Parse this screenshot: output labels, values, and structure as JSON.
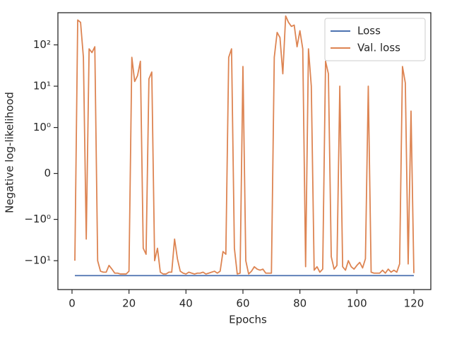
{
  "chart_data": {
    "type": "line",
    "x_label": "Epochs",
    "y_label": "Negative log-likelihood",
    "x": [
      1,
      2,
      3,
      4,
      5,
      6,
      7,
      8,
      9,
      10,
      11,
      12,
      13,
      14,
      15,
      16,
      17,
      18,
      19,
      20,
      21,
      22,
      23,
      24,
      25,
      26,
      27,
      28,
      29,
      30,
      31,
      32,
      33,
      34,
      35,
      36,
      37,
      38,
      39,
      40,
      41,
      42,
      43,
      44,
      45,
      46,
      47,
      48,
      49,
      50,
      51,
      52,
      53,
      54,
      55,
      56,
      57,
      58,
      59,
      60,
      61,
      62,
      63,
      64,
      65,
      66,
      67,
      68,
      69,
      70,
      71,
      72,
      73,
      74,
      75,
      76,
      77,
      78,
      79,
      80,
      81,
      82,
      83,
      84,
      85,
      86,
      87,
      88,
      89,
      90,
      91,
      92,
      93,
      94,
      95,
      96,
      97,
      98,
      99,
      100,
      101,
      102,
      103,
      104,
      105,
      106,
      107,
      108,
      109,
      110,
      111,
      112,
      113,
      114,
      115,
      116,
      117,
      118,
      119,
      120
    ],
    "series": [
      {
        "name": "Loss",
        "color": "#4c72b0",
        "values": [
          -23,
          -23,
          -23,
          -23,
          -23,
          -23,
          -23,
          -23,
          -23,
          -23,
          -23,
          -23,
          -23,
          -23,
          -23,
          -23,
          -23,
          -23,
          -23,
          -23,
          -23,
          -23,
          -23,
          -23,
          -23,
          -23,
          -23,
          -23,
          -23,
          -23,
          -23,
          -23,
          -23,
          -23,
          -23,
          -23,
          -23,
          -23,
          -23,
          -23,
          -23,
          -23,
          -23,
          -23,
          -23,
          -23,
          -23,
          -23,
          -23,
          -23,
          -23,
          -23,
          -23,
          -23,
          -23,
          -23,
          -23,
          -23,
          -23,
          -23,
          -23,
          -23,
          -23,
          -23,
          -23,
          -23,
          -23,
          -23,
          -23,
          -23,
          -23,
          -23,
          -23,
          -23,
          -23,
          -23,
          -23,
          -23,
          -23,
          -23,
          -23,
          -23,
          -23,
          -23,
          -23,
          -23,
          -23,
          -23,
          -23,
          -23,
          -23,
          -23,
          -23,
          -23,
          -23,
          -23,
          -23,
          -23,
          -23,
          -23,
          -23,
          -23,
          -23,
          -23,
          -23,
          -23,
          -23,
          -23,
          -23,
          -23,
          -23,
          -23,
          -23,
          -23,
          -23,
          -23,
          -23,
          -23,
          -23,
          -23
        ]
      },
      {
        "name": "Val. loss",
        "color": "#dd8452",
        "values": [
          -10,
          400,
          350,
          50,
          -3,
          80,
          65,
          90,
          -10,
          -18,
          -19,
          -19,
          -13,
          -16,
          -20,
          -20,
          -21,
          -21,
          -21,
          -18,
          50,
          13,
          18,
          40,
          -5,
          -7,
          15,
          22,
          -10,
          -5,
          -19,
          -21,
          -21,
          -19,
          -19,
          -3,
          -9,
          -18,
          -20,
          -21,
          -19,
          -20,
          -21,
          -20,
          -20,
          -19,
          -21,
          -20,
          -19,
          -18,
          -20,
          -18,
          -6,
          -7,
          50,
          80,
          -5,
          -21,
          -20,
          30,
          -10,
          -21,
          -18,
          -14,
          -16,
          -17,
          -16,
          -20,
          -20,
          -20,
          50,
          200,
          150,
          20,
          500,
          350,
          280,
          300,
          90,
          220,
          80,
          -14,
          80,
          10,
          -17,
          -14,
          -19,
          -16,
          40,
          20,
          -8,
          -16,
          -13,
          10,
          -14,
          -17,
          -10,
          -14,
          -16,
          -13,
          -11,
          -15,
          -9,
          10,
          -19,
          -20,
          -20,
          -20,
          -17,
          -20,
          -16,
          -19,
          -17,
          -19,
          -12,
          30,
          12,
          -12,
          2.5,
          -20
        ]
      }
    ],
    "xlim": [
      -4.95,
      125.95
    ],
    "xticks": [
      0,
      20,
      40,
      60,
      80,
      100,
      120
    ],
    "ylim": [
      -50,
      600
    ],
    "yscale": "symlog",
    "yticks": [
      {
        "value": -10,
        "label": "−10¹"
      },
      {
        "value": -1,
        "label": "−10⁰"
      },
      0,
      {
        "value": 1,
        "label": "10⁰"
      },
      {
        "value": 10,
        "label": "10¹"
      },
      {
        "value": 100,
        "label": "10²"
      }
    ],
    "legend": "upper right"
  }
}
